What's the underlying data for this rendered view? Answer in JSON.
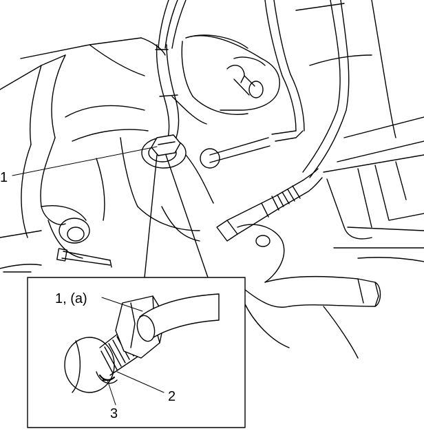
{
  "callouts": {
    "main_1": "1",
    "inset_1a": "1, (a)",
    "inset_2": "2",
    "inset_3": "3"
  }
}
